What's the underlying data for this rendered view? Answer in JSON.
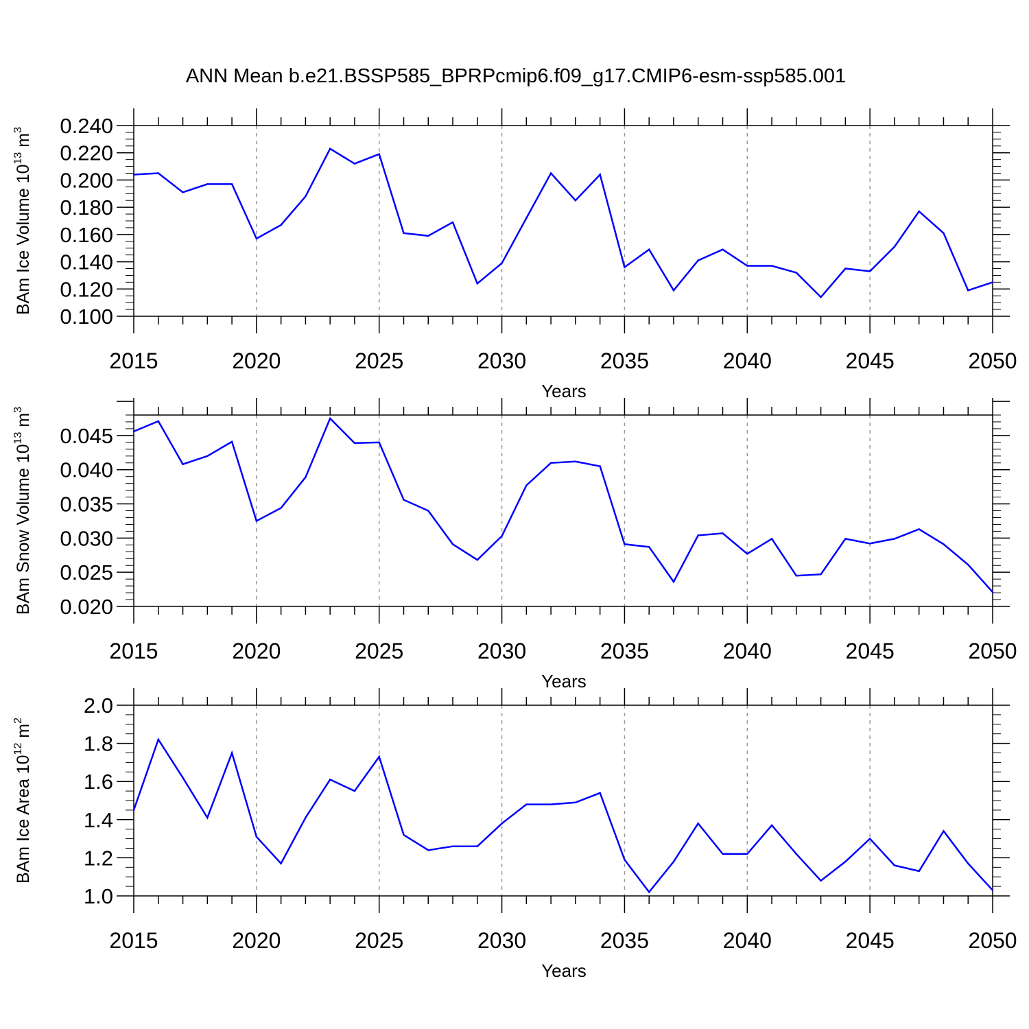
{
  "title": "ANN Mean b.e21.BSSP585_BPRPcmip6.f09_g17.CMIP6-esm-ssp585.001",
  "colors": {
    "line": "#0000ff",
    "axis": "#000000",
    "grid": "#999999"
  },
  "chart_data": [
    {
      "type": "line",
      "name": "ice-volume",
      "ylabel": {
        "main": "BAm Ice Volume 10",
        "sup": "13",
        "unit": " m",
        "unit_sup": "3"
      },
      "xlabel": "Years",
      "xlim": [
        2015,
        2050
      ],
      "ylim": [
        0.1,
        0.24
      ],
      "y_tick_labels": [
        "0.100",
        "0.120",
        "0.140",
        "0.160",
        "0.180",
        "0.200",
        "0.220",
        "0.240"
      ],
      "x_tick_labels": [
        "2015",
        "2020",
        "2025",
        "2030",
        "2035",
        "2040",
        "2045",
        "2050"
      ],
      "x": [
        2015,
        2016,
        2017,
        2018,
        2019,
        2020,
        2021,
        2022,
        2023,
        2024,
        2025,
        2026,
        2027,
        2028,
        2029,
        2030,
        2031,
        2032,
        2033,
        2034,
        2035,
        2036,
        2037,
        2038,
        2039,
        2040,
        2041,
        2042,
        2043,
        2044,
        2045,
        2046,
        2047,
        2048,
        2049,
        2050
      ],
      "values": [
        0.204,
        0.205,
        0.191,
        0.197,
        0.197,
        0.157,
        0.167,
        0.188,
        0.223,
        0.212,
        0.219,
        0.161,
        0.159,
        0.169,
        0.124,
        0.139,
        0.172,
        0.205,
        0.185,
        0.204,
        0.136,
        0.149,
        0.119,
        0.141,
        0.149,
        0.137,
        0.137,
        0.132,
        0.114,
        0.135,
        0.133,
        0.151,
        0.177,
        0.161,
        0.119,
        0.125
      ],
      "grid": "dashed vertical at major x ticks"
    },
    {
      "type": "line",
      "name": "snow-volume",
      "ylabel": {
        "main": "BAm Snow Volume 10",
        "sup": "13",
        "unit": " m",
        "unit_sup": "3"
      },
      "xlabel": "Years",
      "xlim": [
        2015,
        2050
      ],
      "ylim": [
        0.02,
        0.048
      ],
      "y_tick_labels": [
        "0.020",
        "0.025",
        "0.030",
        "0.035",
        "0.040",
        "0.045"
      ],
      "x_tick_labels": [
        "2015",
        "2020",
        "2025",
        "2030",
        "2035",
        "2040",
        "2045",
        "2050"
      ],
      "x": [
        2015,
        2016,
        2017,
        2018,
        2019,
        2020,
        2021,
        2022,
        2023,
        2024,
        2025,
        2026,
        2027,
        2028,
        2029,
        2030,
        2031,
        2032,
        2033,
        2034,
        2035,
        2036,
        2037,
        2038,
        2039,
        2040,
        2041,
        2042,
        2043,
        2044,
        2045,
        2046,
        2047,
        2048,
        2049,
        2050
      ],
      "values": [
        0.0456,
        0.0471,
        0.0408,
        0.042,
        0.0441,
        0.0325,
        0.0344,
        0.0389,
        0.0475,
        0.0439,
        0.044,
        0.0356,
        0.034,
        0.0291,
        0.0268,
        0.0303,
        0.0377,
        0.041,
        0.0412,
        0.0405,
        0.0291,
        0.0287,
        0.0236,
        0.0304,
        0.0307,
        0.0277,
        0.0299,
        0.0245,
        0.0247,
        0.0299,
        0.0292,
        0.0299,
        0.0313,
        0.0291,
        0.0261,
        0.0221
      ],
      "grid": "dashed vertical at major x ticks"
    },
    {
      "type": "line",
      "name": "ice-area",
      "ylabel": {
        "main": "BAm Ice Area 10",
        "sup": "12",
        "unit": " m",
        "unit_sup": "2"
      },
      "xlabel": "Years",
      "xlim": [
        2015,
        2050
      ],
      "ylim": [
        1.0,
        2.0
      ],
      "y_tick_labels": [
        "1.0",
        "1.2",
        "1.4",
        "1.6",
        "1.8",
        "2.0"
      ],
      "x_tick_labels": [
        "2015",
        "2020",
        "2025",
        "2030",
        "2035",
        "2040",
        "2045",
        "2050"
      ],
      "x": [
        2015,
        2016,
        2017,
        2018,
        2019,
        2020,
        2021,
        2022,
        2023,
        2024,
        2025,
        2026,
        2027,
        2028,
        2029,
        2030,
        2031,
        2032,
        2033,
        2034,
        2035,
        2036,
        2037,
        2038,
        2039,
        2040,
        2041,
        2042,
        2043,
        2044,
        2045,
        2046,
        2047,
        2048,
        2049,
        2050
      ],
      "values": [
        1.45,
        1.82,
        1.62,
        1.41,
        1.75,
        1.31,
        1.17,
        1.41,
        1.61,
        1.55,
        1.73,
        1.32,
        1.24,
        1.26,
        1.26,
        1.38,
        1.48,
        1.48,
        1.49,
        1.54,
        1.19,
        1.02,
        1.18,
        1.38,
        1.22,
        1.22,
        1.37,
        1.22,
        1.08,
        1.18,
        1.3,
        1.16,
        1.13,
        1.34,
        1.17,
        1.03
      ],
      "grid": "dashed vertical at major x ticks"
    }
  ]
}
